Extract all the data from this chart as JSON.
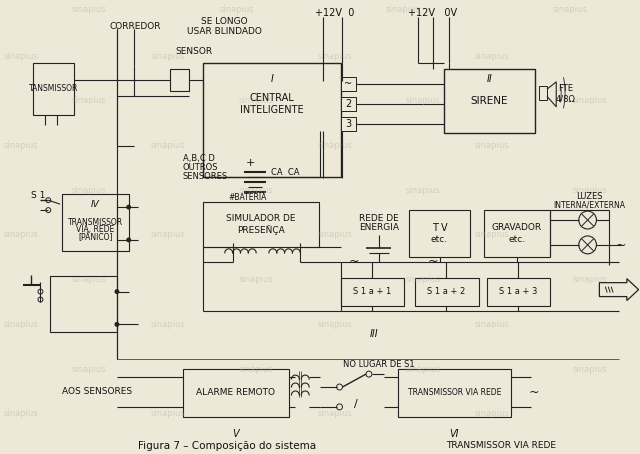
{
  "title": "Figura 7 – Composição do sistema",
  "bg_color": "#ede8d8",
  "line_color": "#222222",
  "box_fill": "#ede8d8",
  "text_color": "#111111",
  "watermark_color": "#b8b0a0",
  "wm_texts": [
    [
      80,
      8,
      "sinapius"
    ],
    [
      230,
      8,
      "sinapius"
    ],
    [
      400,
      8,
      "sinapius"
    ],
    [
      570,
      8,
      "sinapius"
    ],
    [
      10,
      55,
      "sinapius"
    ],
    [
      160,
      55,
      "sinapius"
    ],
    [
      330,
      55,
      "sinapius"
    ],
    [
      490,
      55,
      "sinapius"
    ],
    [
      80,
      100,
      "sinapius"
    ],
    [
      250,
      100,
      "sinapius"
    ],
    [
      420,
      100,
      "sinapius"
    ],
    [
      590,
      100,
      "sinapius"
    ],
    [
      10,
      145,
      "sinapius"
    ],
    [
      160,
      145,
      "sinapius"
    ],
    [
      330,
      145,
      "sinapius"
    ],
    [
      490,
      145,
      "sinapius"
    ],
    [
      80,
      190,
      "sinapius"
    ],
    [
      250,
      190,
      "sinapius"
    ],
    [
      420,
      190,
      "sinapius"
    ],
    [
      590,
      190,
      "sinapius"
    ],
    [
      10,
      235,
      "sinapius"
    ],
    [
      160,
      235,
      "sinapius"
    ],
    [
      330,
      235,
      "sinapius"
    ],
    [
      490,
      235,
      "sinapius"
    ],
    [
      80,
      280,
      "sinapius"
    ],
    [
      250,
      280,
      "sinapius"
    ],
    [
      420,
      280,
      "sinapius"
    ],
    [
      590,
      280,
      "sinapius"
    ],
    [
      10,
      325,
      "sinapius"
    ],
    [
      160,
      325,
      "sinapius"
    ],
    [
      330,
      325,
      "sinapius"
    ],
    [
      490,
      325,
      "sinapius"
    ],
    [
      80,
      370,
      "sinapius"
    ],
    [
      250,
      370,
      "sinapius"
    ],
    [
      420,
      370,
      "sinapius"
    ],
    [
      590,
      370,
      "sinapius"
    ],
    [
      10,
      415,
      "sinapius"
    ],
    [
      160,
      415,
      "sinapius"
    ],
    [
      330,
      415,
      "sinapius"
    ],
    [
      490,
      415,
      "sinapius"
    ]
  ]
}
